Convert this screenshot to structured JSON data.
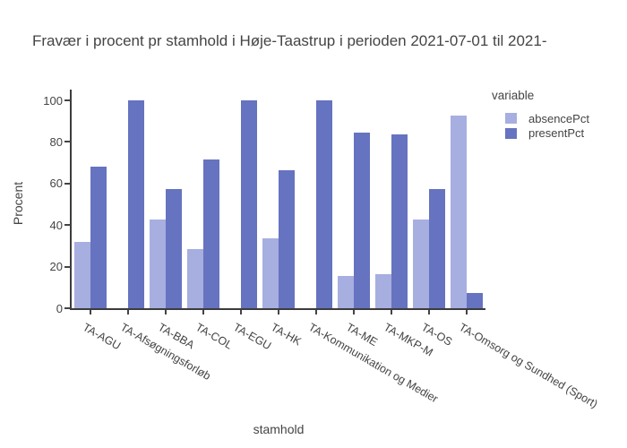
{
  "page": {
    "background": "#ffffff"
  },
  "chart_data": {
    "type": "bar",
    "title": "Fravær i procent pr stamhold i Høje-Taastrup i perioden 2021-07-01 til 2021-",
    "xlabel": "stamhold",
    "ylabel": "Procent",
    "ylim": [
      0,
      100
    ],
    "yticks": [
      0,
      20,
      40,
      60,
      80,
      100
    ],
    "grid": false,
    "legend": {
      "title": "variable",
      "position": "top-right"
    },
    "categories": [
      "TA-AGU",
      "TA-Afsøgningsforløb",
      "TA-BBA",
      "TA-COL",
      "TA-EGU",
      "TA-HK",
      "TA-Kommunikation og Medier",
      "TA-ME",
      "TA-MKP-M",
      "TA-OS",
      "TA-Omsorg og Sundhed (Sport)"
    ],
    "series": [
      {
        "name": "absencePct",
        "color": "#A7AEE0",
        "values": [
          32,
          0,
          42.5,
          28.5,
          0,
          33.5,
          0,
          15.5,
          16.5,
          42.5,
          92.5
        ]
      },
      {
        "name": "presentPct",
        "color": "#6673C0",
        "values": [
          68,
          100,
          57.5,
          71.5,
          100,
          66.5,
          100,
          84.5,
          83.5,
          57.5,
          7.5
        ]
      }
    ],
    "axis_color": "#3c3c3c",
    "text_color": "#444444"
  }
}
